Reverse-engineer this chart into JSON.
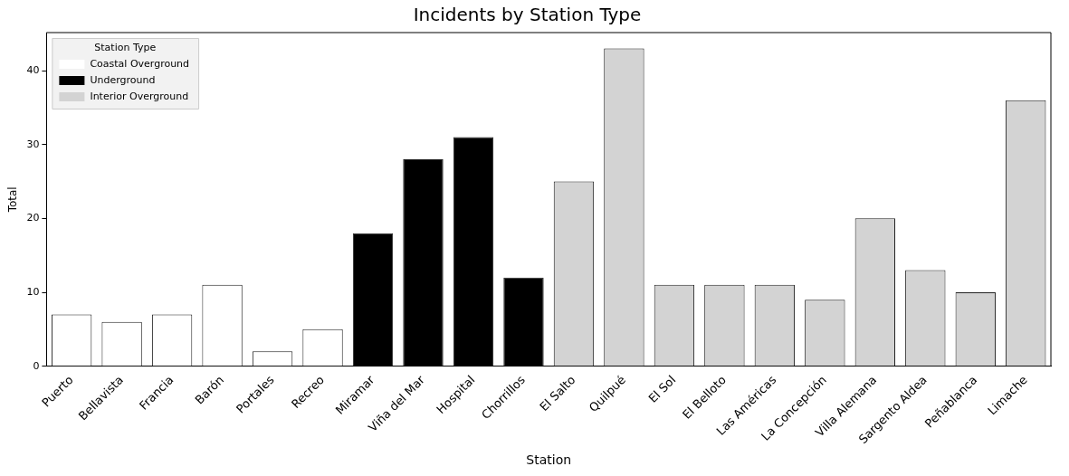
{
  "chart_data": {
    "type": "bar",
    "title": "Incidents by Station Type",
    "xlabel": "Station",
    "ylabel": "Total",
    "legend_title": "Station Type",
    "legend": "top left",
    "grid": false,
    "categories": [
      "Puerto",
      "Bellavista",
      "Francia",
      "Barón",
      "Portales",
      "Recreo",
      "Miramar",
      "Viña del Mar",
      "Hospital",
      "Chorrillos",
      "El Salto",
      "Quilpué",
      "El Sol",
      "El Belloto",
      "Las Américas",
      "La Concepción",
      "Villa Alemana",
      "Sargento Aldea",
      "Peñablanca",
      "Limache"
    ],
    "ylim": [
      0,
      45.15
    ],
    "yticks": [
      0,
      10,
      20,
      30,
      40
    ],
    "series": [
      {
        "name": "Coastal Overground",
        "color": "#ffffff",
        "values": [
          7,
          6,
          7,
          11,
          2,
          5,
          null,
          null,
          null,
          null,
          null,
          null,
          null,
          null,
          null,
          null,
          null,
          null,
          null,
          null
        ]
      },
      {
        "name": "Underground",
        "color": "#000000",
        "values": [
          null,
          null,
          null,
          null,
          null,
          null,
          18,
          28,
          31,
          12,
          null,
          null,
          null,
          null,
          null,
          null,
          null,
          null,
          null,
          null
        ]
      },
      {
        "name": "Interior Overground",
        "color": "#d3d3d3",
        "values": [
          null,
          null,
          null,
          null,
          null,
          null,
          null,
          null,
          null,
          null,
          25,
          43,
          11,
          11,
          11,
          9,
          20,
          13,
          10,
          36
        ]
      }
    ]
  }
}
